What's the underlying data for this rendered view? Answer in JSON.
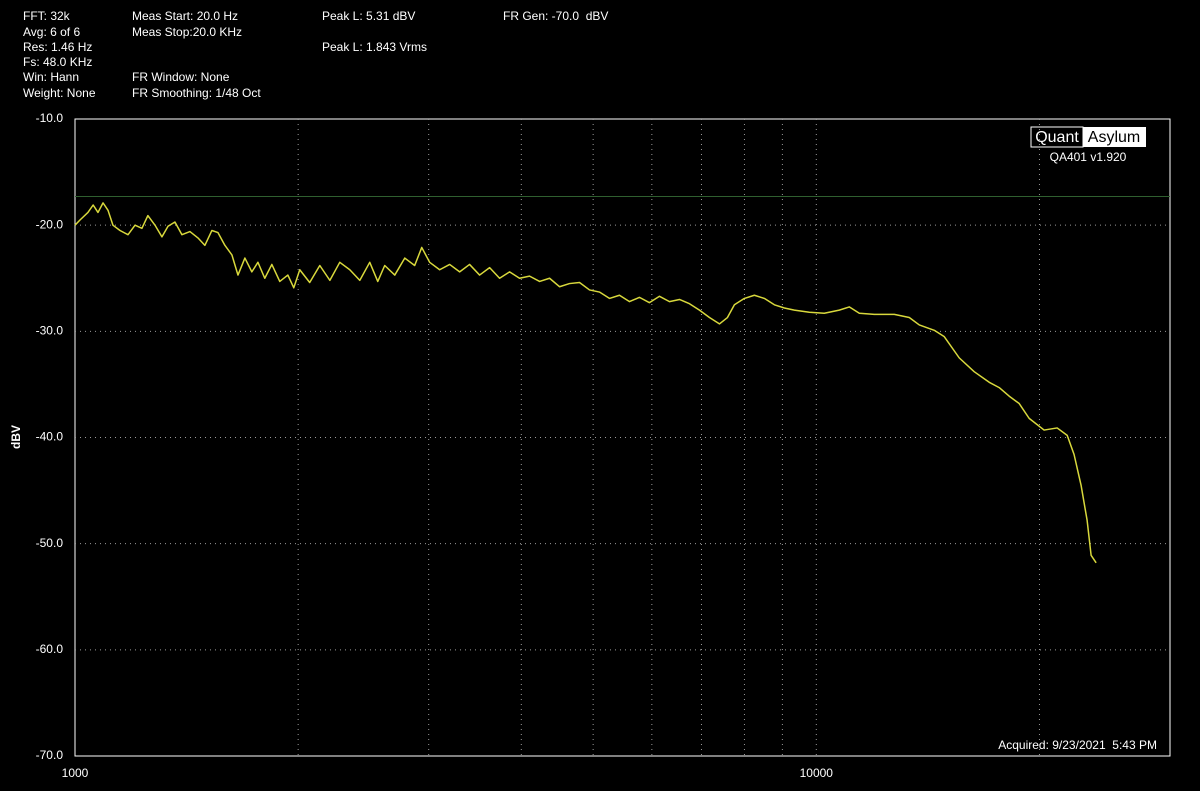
{
  "header": [
    "FFT: 32k",
    "Avg: 6 of 6",
    "Res: 1.46 Hz",
    "Fs: 48.0 KHz",
    "Win: Hann",
    "Weight: None",
    "Meas Start: 20.0 Hz",
    "Meas Stop:20.0 KHz",
    "FR Window: None",
    "FR Smoothing: 1/48 Oct",
    "Peak L: 5.31 dBV",
    "Peak L: 1.843 Vrms",
    "FR Gen: -70.0  dBV"
  ],
  "chart_data": {
    "type": "line",
    "ylabel": "dBV",
    "logo": [
      "Quant",
      "Asylum"
    ],
    "version": "QA401 v1.920",
    "acquired": "Acquired: 9/23/2021  5:43 PM",
    "xscale": "log",
    "grid": true,
    "xlim": [
      1000,
      30000
    ],
    "xticks": [
      1000,
      10000
    ],
    "ylim": [
      -70,
      -10
    ],
    "yticks": [
      {
        "value": -70,
        "label": "-70.0"
      },
      {
        "value": -60,
        "label": "-60.0"
      },
      {
        "value": -50,
        "label": "-50.0"
      },
      {
        "value": -40,
        "label": "-40.0"
      },
      {
        "value": -30,
        "label": "-30.0"
      },
      {
        "value": -20,
        "label": "-20.0"
      },
      {
        "value": -10,
        "label": "-10.0"
      }
    ],
    "reference_line": {
      "value": -17.3,
      "color": "#2f5f2f"
    },
    "x": [
      1000,
      1016,
      1041,
      1058,
      1074,
      1091,
      1108,
      1125,
      1150,
      1179,
      1205,
      1231,
      1254,
      1282,
      1310,
      1335,
      1364,
      1394,
      1429,
      1465,
      1497,
      1530,
      1559,
      1593,
      1628,
      1659,
      1695,
      1732,
      1765,
      1803,
      1843,
      1889,
      1937,
      1973,
      2010,
      2073,
      2139,
      2207,
      2276,
      2348,
      2422,
      2498,
      2561,
      2617,
      2700,
      2785,
      2872,
      2936,
      3009,
      3104,
      3202,
      3303,
      3406,
      3514,
      3625,
      3739,
      3857,
      3978,
      4104,
      4234,
      4367,
      4504,
      4646,
      4793,
      4944,
      5099,
      5260,
      5426,
      5598,
      5774,
      5956,
      6144,
      6338,
      6538,
      6744,
      6956,
      7176,
      7402,
      7588,
      7754,
      7998,
      8250,
      8510,
      8779,
      9056,
      9341,
      9786,
      10251,
      10740,
      11078,
      11429,
      11973,
      12742,
      13348,
      13770,
      14425,
      14880,
      15588,
      16330,
      17110,
      17650,
      18200,
      18780,
      19370,
      20290,
      21130,
      21800,
      22270,
      22760,
      23190,
      23480,
      23850
    ],
    "series": [
      {
        "color": "#d8d83c",
        "values": [
          -20.0,
          -19.5,
          -18.8,
          -18.1,
          -18.8,
          -17.9,
          -18.6,
          -20.0,
          -20.5,
          -20.9,
          -20.0,
          -20.3,
          -19.1,
          -20.0,
          -21.1,
          -20.1,
          -19.7,
          -20.9,
          -20.6,
          -21.2,
          -21.9,
          -20.5,
          -20.7,
          -21.9,
          -22.8,
          -24.7,
          -23.1,
          -24.4,
          -23.5,
          -25.0,
          -23.7,
          -25.3,
          -24.7,
          -25.9,
          -24.2,
          -25.4,
          -23.8,
          -25.2,
          -23.5,
          -24.2,
          -25.2,
          -23.5,
          -25.3,
          -23.8,
          -24.7,
          -23.1,
          -23.8,
          -22.1,
          -23.5,
          -24.2,
          -23.7,
          -24.4,
          -23.7,
          -24.7,
          -24.0,
          -25.0,
          -24.4,
          -25.0,
          -24.8,
          -25.3,
          -25.0,
          -25.8,
          -25.5,
          -25.4,
          -26.1,
          -26.3,
          -26.9,
          -26.6,
          -27.2,
          -26.8,
          -27.3,
          -26.7,
          -27.2,
          -27.0,
          -27.4,
          -28.0,
          -28.7,
          -29.3,
          -28.7,
          -27.5,
          -26.9,
          -26.6,
          -26.9,
          -27.5,
          -27.8,
          -28.0,
          -28.2,
          -28.3,
          -28.0,
          -27.7,
          -28.3,
          -28.4,
          -28.4,
          -28.7,
          -29.4,
          -29.9,
          -30.5,
          -32.5,
          -33.8,
          -34.8,
          -35.3,
          -36.1,
          -36.8,
          -38.2,
          -39.3,
          -39.1,
          -39.8,
          -41.6,
          -44.5,
          -47.8,
          -51.1,
          -51.8
        ]
      }
    ]
  }
}
